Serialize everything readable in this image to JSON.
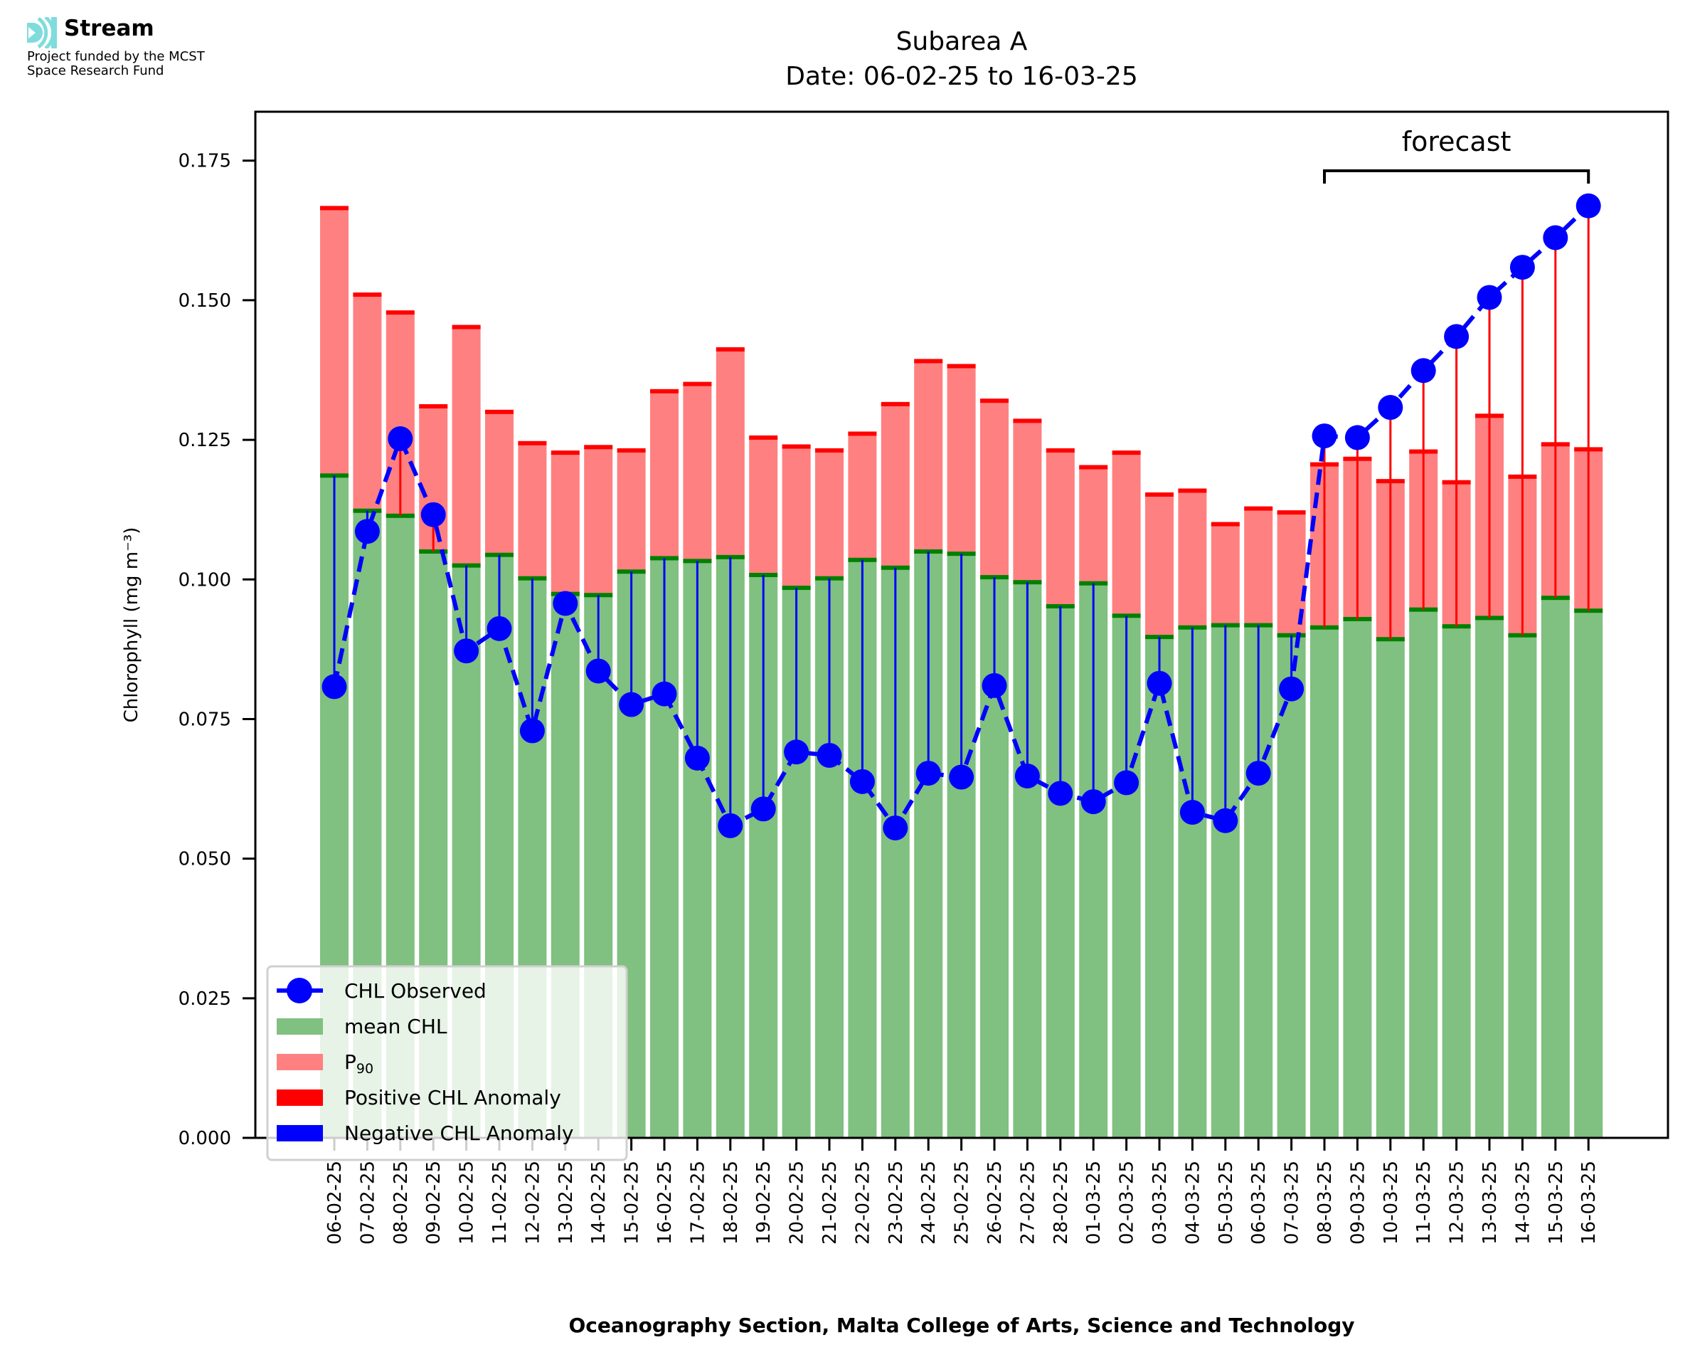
{
  "branding": {
    "name": "Stream",
    "funding_line1": "Project funded by the MCST",
    "funding_line2": "Space Research Fund"
  },
  "colors": {
    "mean_fill": "#80c080",
    "mean_cap": "#008000",
    "p90_fill": "#ff8080",
    "p90_cap": "#ff0000",
    "observed": "#0000ff",
    "positive_anomaly": "#ff0000",
    "negative_anomaly": "#0000ff",
    "logo": "#7fdcdc"
  },
  "chart_data": {
    "type": "bar",
    "title": "Subarea A",
    "subtitle": "Date: 06-02-25 to 16-03-25",
    "xlabel": "Oceanography Section, Malta College of Arts, Science and Technology",
    "ylabel": "Chlorophyll (mg m⁻³)",
    "ylim": [
      0,
      0.184
    ],
    "yticks": [
      "0.000",
      "0.025",
      "0.050",
      "0.075",
      "0.100",
      "0.125",
      "0.150",
      "0.175"
    ],
    "ytick_values": [
      0,
      0.025,
      0.05,
      0.075,
      0.1,
      0.125,
      0.15,
      0.175
    ],
    "grid": false,
    "legend_position": "lower-left",
    "legend": [
      {
        "label": "CHL Observed",
        "key": "observed"
      },
      {
        "label": "mean CHL",
        "key": "mean"
      },
      {
        "label": "P",
        "sub": "90",
        "key": "p90"
      },
      {
        "label": "Positive CHL Anomaly",
        "key": "positive"
      },
      {
        "label": "Negative CHL Anomaly",
        "key": "negative"
      }
    ],
    "annotation": {
      "text": "forecast",
      "from": "08-03-25",
      "to": "16-03-25"
    },
    "categories": [
      "06-02-25",
      "07-02-25",
      "08-02-25",
      "09-02-25",
      "10-02-25",
      "11-02-25",
      "12-02-25",
      "13-02-25",
      "14-02-25",
      "15-02-25",
      "16-02-25",
      "17-02-25",
      "18-02-25",
      "19-02-25",
      "20-02-25",
      "21-02-25",
      "22-02-25",
      "23-02-25",
      "24-02-25",
      "25-02-25",
      "26-02-25",
      "27-02-25",
      "28-02-25",
      "01-03-25",
      "02-03-25",
      "03-03-25",
      "04-03-25",
      "05-03-25",
      "06-03-25",
      "07-03-25",
      "08-03-25",
      "09-03-25",
      "10-03-25",
      "11-03-25",
      "12-03-25",
      "13-03-25",
      "14-03-25",
      "15-03-25",
      "16-03-25"
    ],
    "series": [
      {
        "name": "mean CHL",
        "values": [
          0.1186,
          0.1123,
          0.1114,
          0.105,
          0.1025,
          0.1044,
          0.1002,
          0.0974,
          0.0972,
          0.1014,
          0.1038,
          0.1033,
          0.104,
          0.1008,
          0.0985,
          0.1002,
          0.1035,
          0.1021,
          0.105,
          0.1046,
          0.1004,
          0.0995,
          0.0952,
          0.0993,
          0.0935,
          0.0897,
          0.0914,
          0.0918,
          0.0918,
          0.09,
          0.0914,
          0.0929,
          0.0893,
          0.0946,
          0.0916,
          0.0931,
          0.09,
          0.0967,
          0.0944
        ]
      },
      {
        "name": "P90",
        "values": [
          0.1665,
          0.151,
          0.1478,
          0.131,
          0.1452,
          0.13,
          0.1244,
          0.1227,
          0.1237,
          0.1231,
          0.1337,
          0.135,
          0.1412,
          0.1254,
          0.1238,
          0.1231,
          0.1261,
          0.1314,
          0.1391,
          0.1382,
          0.132,
          0.1284,
          0.1231,
          0.1201,
          0.1227,
          0.1152,
          0.1159,
          0.1099,
          0.1127,
          0.112,
          0.1206,
          0.1216,
          0.1176,
          0.1229,
          0.1174,
          0.1293,
          0.1184,
          0.1242,
          0.1233
        ]
      },
      {
        "name": "CHL Observed",
        "values": [
          0.0808,
          0.1086,
          0.1252,
          0.1116,
          0.0872,
          0.0912,
          0.0729,
          0.0957,
          0.0836,
          0.0776,
          0.0795,
          0.068,
          0.0559,
          0.0589,
          0.0691,
          0.0685,
          0.0638,
          0.0555,
          0.0653,
          0.0646,
          0.081,
          0.0648,
          0.0617,
          0.0602,
          0.0636,
          0.0814,
          0.0583,
          0.0568,
          0.0653,
          0.0804,
          0.1257,
          0.1254,
          0.1308,
          0.1374,
          0.1435,
          0.1505,
          0.1559,
          0.1612,
          0.1669
        ]
      }
    ]
  }
}
